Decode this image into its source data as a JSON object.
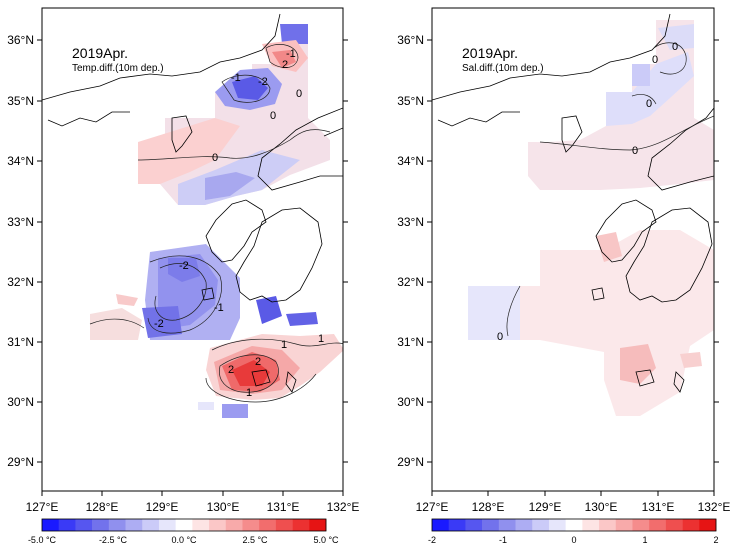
{
  "panels": [
    {
      "title": "2019Apr.",
      "subtitle": "Temp.diff.(10m dep.)",
      "lat_labels": [
        "36°N",
        "35°N",
        "34°N",
        "33°N",
        "32°N",
        "31°N",
        "30°N",
        "29°N"
      ],
      "lon_labels": [
        "127°E",
        "128°E",
        "129°E",
        "130°E",
        "131°E",
        "132°E"
      ],
      "contour_labels": [
        "-1",
        "2",
        "-1",
        "-2",
        "0",
        "0",
        "0",
        "-2",
        "-1",
        "-2",
        "1",
        "2",
        "2",
        "1",
        "1"
      ],
      "colorbar_labels": [
        "-5.0 °C",
        "-2.5 °C",
        "0.0 °C",
        "2.5 °C",
        "5.0 °C"
      ],
      "colorbar_colors": [
        "#1a1aff",
        "#3a3af6",
        "#5656f0",
        "#7272ec",
        "#9090ee",
        "#adadf3",
        "#cbcbf8",
        "#e6e6fb",
        "#ffffff",
        "#fde4e4",
        "#fbc7c7",
        "#f8aaaa",
        "#f58c8c",
        "#f26d6d",
        "#ef4f4f",
        "#ec3131",
        "#e61414"
      ]
    },
    {
      "title": "2019Apr.",
      "subtitle": "Sal.diff.(10m dep.)",
      "lat_labels": [
        "36°N",
        "35°N",
        "34°N",
        "33°N",
        "32°N",
        "31°N",
        "30°N",
        "29°N"
      ],
      "lon_labels": [
        "127°E",
        "128°E",
        "129°E",
        "130°E",
        "131°E",
        "132°E"
      ],
      "contour_labels": [
        "0",
        "0",
        "0",
        "0",
        "0"
      ],
      "colorbar_labels": [
        "-2",
        "-1",
        "0",
        "1",
        "2"
      ],
      "colorbar_colors": [
        "#1a1aff",
        "#3a3af6",
        "#5656f0",
        "#7272ec",
        "#9090ee",
        "#adadf3",
        "#cbcbf8",
        "#e6e6fb",
        "#ffffff",
        "#fde4e4",
        "#fbc7c7",
        "#f8aaaa",
        "#f58c8c",
        "#f26d6d",
        "#ef4f4f",
        "#ec3131",
        "#e61414"
      ]
    }
  ]
}
